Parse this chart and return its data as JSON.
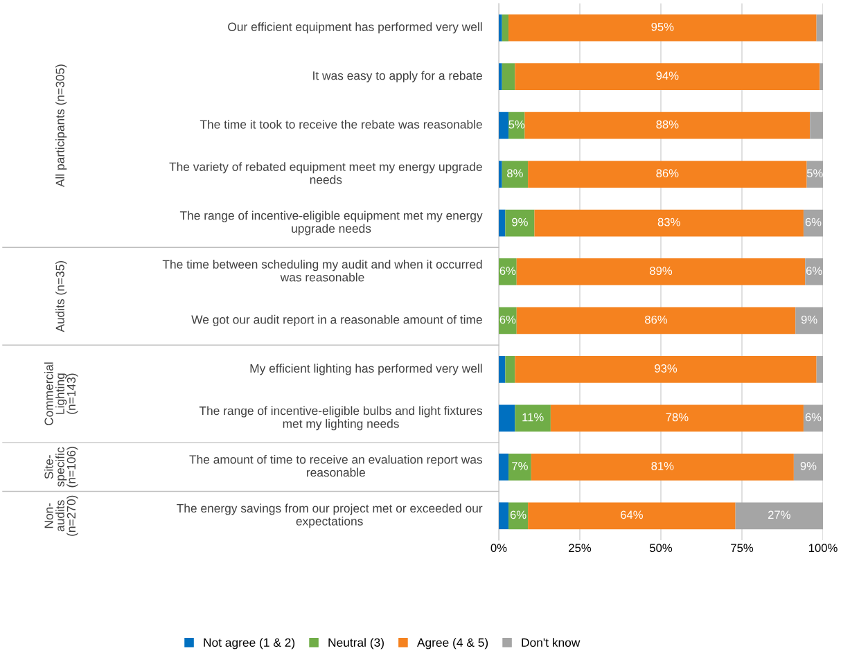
{
  "chart_data": {
    "type": "bar",
    "orientation": "horizontal",
    "stacked": true,
    "categories": [
      "Our efficient equipment has performed very well",
      "It was easy to apply for a rebate",
      "The time it took to receive the rebate was reasonable",
      "The variety of rebated equipment meet my energy upgrade needs",
      "The range of incentive-eligible equipment met my energy upgrade needs",
      "The time between scheduling my audit and when it occurred was reasonable",
      "We got our audit report in a reasonable amount of time",
      "My efficient lighting has performed very well",
      "The range of incentive-eligible bulbs and light fixtures met my lighting needs",
      "The amount of time to receive an evaluation report was reasonable",
      "The energy savings from our project met or exceeded our expectations"
    ],
    "series": [
      {
        "name": "Not agree (1 & 2)",
        "color": "#0070c0",
        "values": [
          1,
          1,
          3,
          1,
          2,
          0,
          0,
          2,
          5,
          3,
          3
        ],
        "value_labels": [
          null,
          null,
          null,
          null,
          null,
          null,
          null,
          null,
          null,
          null,
          null
        ]
      },
      {
        "name": "Neutral (3)",
        "color": "#70ad47",
        "values": [
          2,
          4,
          5,
          8,
          9,
          5.5,
          5.5,
          3,
          11,
          7,
          6
        ],
        "value_labels": [
          null,
          null,
          "5%",
          "8%",
          "9%",
          "6%",
          "6%",
          null,
          "11%",
          "7%",
          "6%"
        ]
      },
      {
        "name": "Agree (4 & 5)",
        "color": "#f5821f",
        "values": [
          95,
          94,
          88,
          86,
          83,
          89,
          86,
          93,
          78,
          81,
          64
        ],
        "value_labels": [
          "95%",
          "94%",
          "88%",
          "86%",
          "83%",
          "89%",
          "86%",
          "93%",
          "78%",
          "81%",
          "64%"
        ]
      },
      {
        "name": "Don't know",
        "color": "#a5a5a5",
        "values": [
          2,
          1,
          4,
          5,
          6,
          5.5,
          8.5,
          2,
          6,
          9,
          27
        ],
        "value_labels": [
          null,
          null,
          null,
          "5%",
          "6%",
          "6%",
          "9%",
          null,
          "6%",
          "9%",
          "27%"
        ]
      }
    ],
    "xlim": [
      0,
      100
    ],
    "xticks": [
      {
        "value": 0,
        "label": "0%"
      },
      {
        "value": 25,
        "label": "25%"
      },
      {
        "value": 50,
        "label": "50%"
      },
      {
        "value": 75,
        "label": "75%"
      },
      {
        "value": 100,
        "label": "100%"
      }
    ],
    "grid": "x",
    "legend": "bottom",
    "annotations": [
      "All participants (n=305)",
      "Audits (n=35)",
      "Commercial Lighting (n=143)",
      "Site-specific (n=106)",
      "Non-audits (n=270)"
    ]
  }
}
